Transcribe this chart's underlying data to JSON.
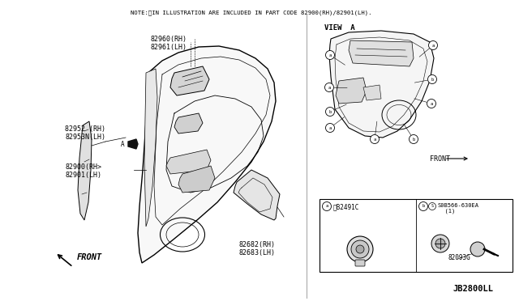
{
  "note_text": "NOTE:※IN ILLUSTRATION ARE INCLUDED IN PART CODE 82900(RH)/82901(LH).",
  "diagram_code": "JB2800LL",
  "bg_color": "#ffffff",
  "lc": "#000000",
  "tc": "#000000",
  "labels": {
    "82960": "82960(RH)\n82961(LH)",
    "82952": "82952 (RH)\n82953N(LH)",
    "82900": "82900(RH>\n82901(LH)",
    "82682": "82682(RH)\n82683(LH)",
    "82491C": "※B2491C",
    "0B566": "S0B566-630EA\n  (1)",
    "82093G": "82093G",
    "VIEW_A": "VIEW  A",
    "FRONT1": "FRONT",
    "FRONT2": "FRONT"
  },
  "door_outer": {
    "x": [
      185,
      195,
      210,
      230,
      265,
      290,
      310,
      325,
      335,
      340,
      338,
      330,
      318,
      300,
      280,
      258,
      230,
      205,
      185,
      178,
      175,
      178,
      182,
      185
    ],
    "y": [
      85,
      75,
      65,
      60,
      60,
      65,
      75,
      90,
      110,
      135,
      160,
      185,
      210,
      235,
      258,
      278,
      300,
      320,
      330,
      320,
      295,
      250,
      180,
      85
    ]
  },
  "trim_piece": {
    "x": [
      108,
      115,
      118,
      116,
      112,
      106,
      100,
      98,
      100,
      106,
      108
    ],
    "y": [
      155,
      148,
      175,
      215,
      255,
      280,
      268,
      235,
      190,
      160,
      155
    ]
  }
}
